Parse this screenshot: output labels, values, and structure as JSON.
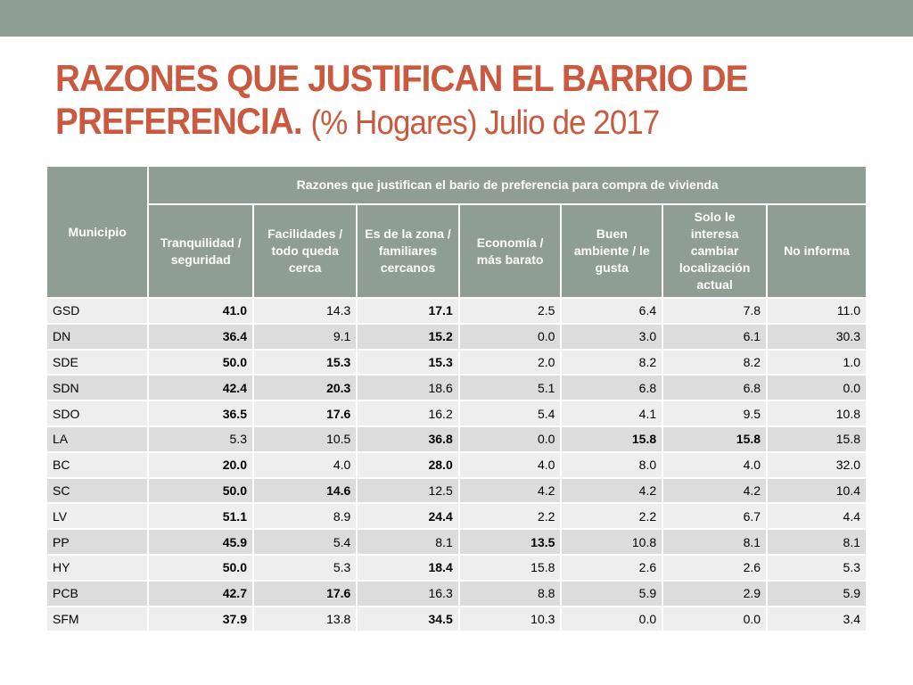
{
  "title": {
    "main": "RAZONES QUE JUSTIFICAN EL BARRIO DE PREFERENCIA.",
    "sub": "(% Hogares) Julio de 2017"
  },
  "table": {
    "municipio_header": "Municipio",
    "group_header": "Razones que justifican el bario de preferencia para compra de vivienda",
    "columns": [
      "Tranquilidad / seguridad",
      "Facilidades / todo queda cerca",
      "Es de la zona / familiares cercanos",
      "Economía / más barato",
      "Buen ambiente / le gusta",
      "Solo le interesa cambiar localización actual",
      "No informa"
    ],
    "rows": [
      {
        "municipio": "GSD",
        "values": [
          "41.0",
          "14.3",
          "17.1",
          "2.5",
          "6.4",
          "7.8",
          "11.0"
        ],
        "bold": [
          true,
          false,
          true,
          false,
          false,
          false,
          false
        ]
      },
      {
        "municipio": "DN",
        "values": [
          "36.4",
          "9.1",
          "15.2",
          "0.0",
          "3.0",
          "6.1",
          "30.3"
        ],
        "bold": [
          true,
          false,
          true,
          false,
          false,
          false,
          false
        ]
      },
      {
        "municipio": "SDE",
        "values": [
          "50.0",
          "15.3",
          "15.3",
          "2.0",
          "8.2",
          "8.2",
          "1.0"
        ],
        "bold": [
          true,
          true,
          true,
          false,
          false,
          false,
          false
        ]
      },
      {
        "municipio": "SDN",
        "values": [
          "42.4",
          "20.3",
          "18.6",
          "5.1",
          "6.8",
          "6.8",
          "0.0"
        ],
        "bold": [
          true,
          true,
          false,
          false,
          false,
          false,
          false
        ]
      },
      {
        "municipio": "SDO",
        "values": [
          "36.5",
          "17.6",
          "16.2",
          "5.4",
          "4.1",
          "9.5",
          "10.8"
        ],
        "bold": [
          true,
          true,
          false,
          false,
          false,
          false,
          false
        ]
      },
      {
        "municipio": "LA",
        "values": [
          "5.3",
          "10.5",
          "36.8",
          "0.0",
          "15.8",
          "15.8",
          "15.8"
        ],
        "bold": [
          false,
          false,
          true,
          false,
          true,
          true,
          false
        ]
      },
      {
        "municipio": "BC",
        "values": [
          "20.0",
          "4.0",
          "28.0",
          "4.0",
          "8.0",
          "4.0",
          "32.0"
        ],
        "bold": [
          true,
          false,
          true,
          false,
          false,
          false,
          false
        ]
      },
      {
        "municipio": "SC",
        "values": [
          "50.0",
          "14.6",
          "12.5",
          "4.2",
          "4.2",
          "4.2",
          "10.4"
        ],
        "bold": [
          true,
          true,
          false,
          false,
          false,
          false,
          false
        ]
      },
      {
        "municipio": "LV",
        "values": [
          "51.1",
          "8.9",
          "24.4",
          "2.2",
          "2.2",
          "6.7",
          "4.4"
        ],
        "bold": [
          true,
          false,
          true,
          false,
          false,
          false,
          false
        ]
      },
      {
        "municipio": "PP",
        "values": [
          "45.9",
          "5.4",
          "8.1",
          "13.5",
          "10.8",
          "8.1",
          "8.1"
        ],
        "bold": [
          true,
          false,
          false,
          true,
          false,
          false,
          false
        ]
      },
      {
        "municipio": "HY",
        "values": [
          "50.0",
          "5.3",
          "18.4",
          "15.8",
          "2.6",
          "2.6",
          "5.3"
        ],
        "bold": [
          true,
          false,
          true,
          false,
          false,
          false,
          false
        ]
      },
      {
        "municipio": "PCB",
        "values": [
          "42.7",
          "17.6",
          "16.3",
          "8.8",
          "5.9",
          "2.9",
          "5.9"
        ],
        "bold": [
          true,
          true,
          false,
          false,
          false,
          false,
          false
        ]
      },
      {
        "municipio": "SFM",
        "values": [
          "37.9",
          "13.8",
          "34.5",
          "10.3",
          "0.0",
          "0.0",
          "3.4"
        ],
        "bold": [
          true,
          false,
          true,
          false,
          false,
          false,
          false
        ]
      }
    ]
  },
  "colors": {
    "title": "#c95a3f",
    "header_bg": "#8f9e92",
    "row_light": "#eeeeee",
    "row_dark": "#dcdcdc"
  }
}
